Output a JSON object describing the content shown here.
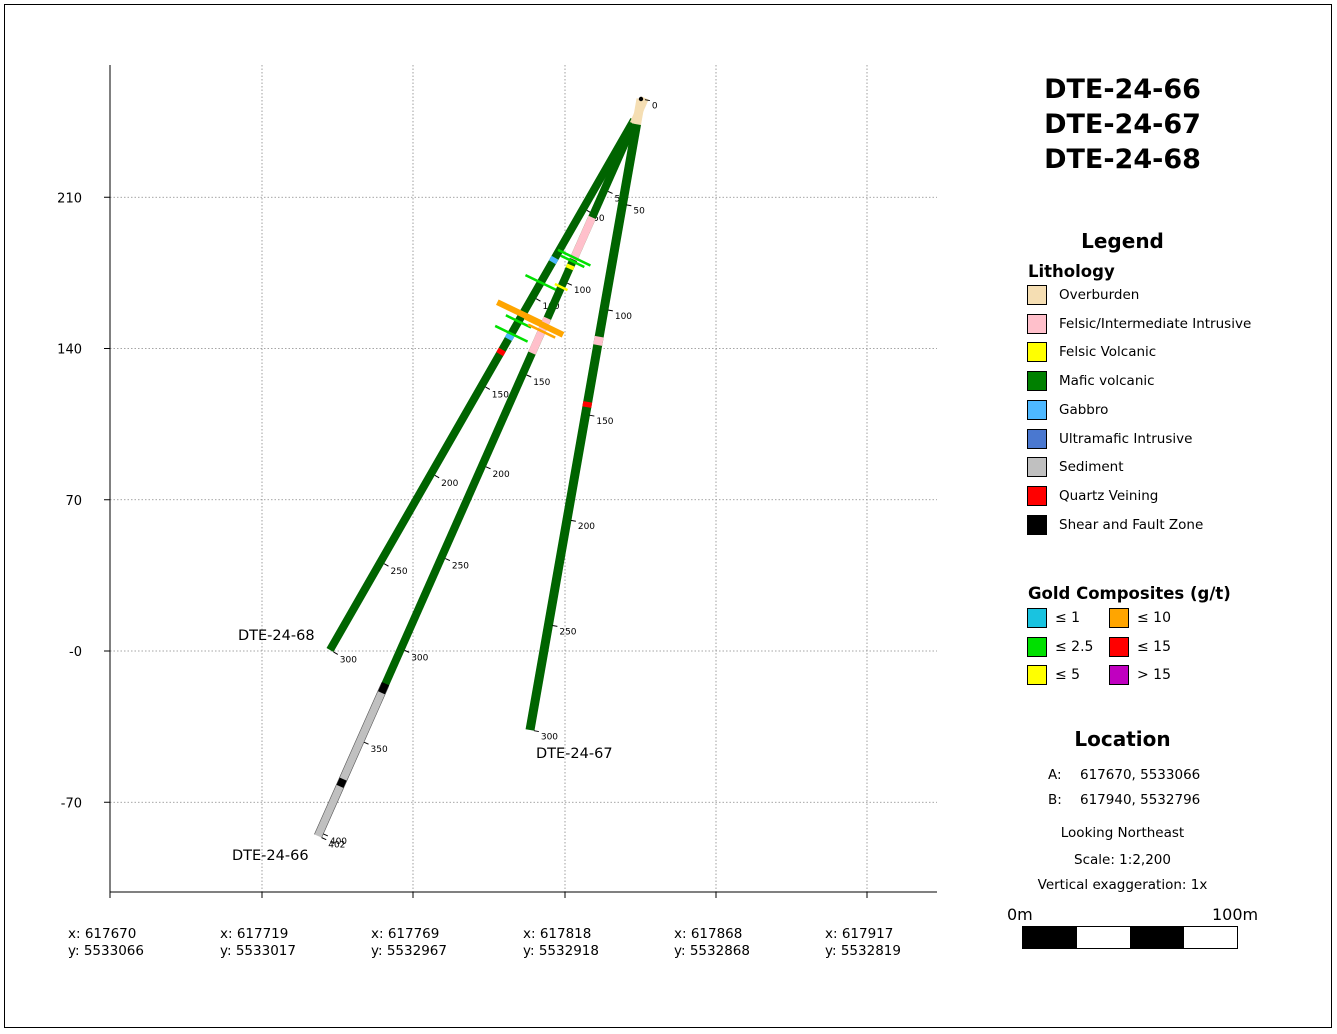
{
  "map": {
    "y_ticks": [
      {
        "value": 210,
        "label": "210"
      },
      {
        "value": 140,
        "label": "140"
      },
      {
        "value": 70,
        "label": "70"
      },
      {
        "value": 0,
        "label": "-0"
      },
      {
        "value": -70,
        "label": "-70"
      }
    ],
    "x_ticks": [
      {
        "x": "x: 617670",
        "y": "y: 5533066"
      },
      {
        "x": "x: 617719",
        "y": "y: 5533017"
      },
      {
        "x": "x: 617769",
        "y": "y: 5532967"
      },
      {
        "x": "x: 617818",
        "y": "y: 5532918"
      },
      {
        "x": "x: 617868",
        "y": "y: 5532868"
      },
      {
        "x": "x: 617917",
        "y": "y: 5532819"
      }
    ],
    "holes": [
      {
        "name": "DTE-24-68",
        "label": "DTE-24-68",
        "depth_labels": [
          {
            "depth": 50,
            "text": "50"
          },
          {
            "depth": 100,
            "text": "100"
          },
          {
            "depth": 150,
            "text": "150"
          },
          {
            "depth": 200,
            "text": "200"
          },
          {
            "depth": 250,
            "text": "250"
          },
          {
            "depth": 300,
            "text": "300"
          }
        ]
      },
      {
        "name": "DTE-24-66",
        "label": "DTE-24-66",
        "depth_labels": [
          {
            "depth": 50,
            "text": "50"
          },
          {
            "depth": 100,
            "text": "100"
          },
          {
            "depth": 150,
            "text": "150"
          },
          {
            "depth": 200,
            "text": "200"
          },
          {
            "depth": 250,
            "text": "250"
          },
          {
            "depth": 300,
            "text": "300"
          },
          {
            "depth": 350,
            "text": "350"
          },
          {
            "depth": 400,
            "text": "400"
          },
          {
            "depth": 402,
            "text": "402"
          }
        ]
      },
      {
        "name": "DTE-24-67",
        "label": "DTE-24-67",
        "depth_labels": [
          {
            "depth": 0,
            "text": "0"
          },
          {
            "depth": 50,
            "text": "50"
          },
          {
            "depth": 100,
            "text": "100"
          },
          {
            "depth": 150,
            "text": "150"
          },
          {
            "depth": 200,
            "text": "200"
          },
          {
            "depth": 250,
            "text": "250"
          },
          {
            "depth": 300,
            "text": "300"
          }
        ]
      }
    ]
  },
  "panel": {
    "titles": [
      "DTE-24-66",
      "DTE-24-67",
      "DTE-24-68"
    ],
    "legend_title": "Legend",
    "lithology_title": "Lithology",
    "lithology": [
      {
        "label": "Overburden",
        "color": "#f5deb3"
      },
      {
        "label": "Felsic/Intermediate Intrusive",
        "color": "#ffc0cb"
      },
      {
        "label": "Felsic Volcanic",
        "color": "#ffff00"
      },
      {
        "label": "Mafic volcanic",
        "color": "#008000"
      },
      {
        "label": "Gabbro",
        "color": "#4db8ff"
      },
      {
        "label": "Ultramafic Intrusive",
        "color": "#4a78d0"
      },
      {
        "label": "Sediment",
        "color": "#c0c0c0"
      },
      {
        "label": "Quartz Veining",
        "color": "#ff0000"
      },
      {
        "label": "Shear and Fault Zone",
        "color": "#000000"
      }
    ],
    "gold_title": "Gold Composites (g/t)",
    "gold": [
      {
        "label": "≤ 1",
        "color": "#19c3e0"
      },
      {
        "label": "≤ 10",
        "color": "#ffa500"
      },
      {
        "label": "≤ 2.5",
        "color": "#00e000"
      },
      {
        "label": "≤ 15",
        "color": "#ff0000"
      },
      {
        "label": "≤ 5",
        "color": "#ffff00"
      },
      {
        "label": "> 15",
        "color": "#c000c0"
      }
    ],
    "location_title": "Location",
    "location_a_label": "A:",
    "location_a_value": "617670, 5533066",
    "location_b_label": "B:",
    "location_b_value": "617940, 5532796",
    "looking": "Looking Northeast",
    "scale": "Scale: 1:2,200",
    "vertical_exaggeration": "Vertical exaggeration: 1x",
    "scalebar_start": "0m",
    "scalebar_end": "100m"
  }
}
